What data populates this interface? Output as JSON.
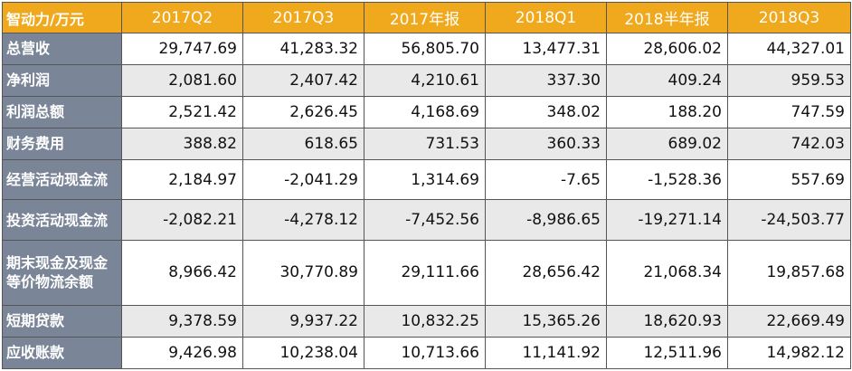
{
  "table": {
    "corner_label": "智动力/万元",
    "columns": [
      "2017Q2",
      "2017Q3",
      "2017年报",
      "2018Q1",
      "2018半年报",
      "2018Q3"
    ],
    "rows": [
      {
        "label": "总营收",
        "values": [
          "29,747.69",
          "41,283.32",
          "56,805.70",
          "13,477.31",
          "28,606.02",
          "44,327.01"
        ]
      },
      {
        "label": "净利润",
        "values": [
          "2,081.60",
          "2,407.42",
          "4,210.61",
          "337.30",
          "409.24",
          "959.53"
        ]
      },
      {
        "label": "利润总额",
        "values": [
          "2,521.42",
          "2,626.45",
          "4,168.69",
          "348.02",
          "188.20",
          "747.59"
        ]
      },
      {
        "label": "财务费用",
        "values": [
          "388.82",
          "618.65",
          "731.53",
          "360.33",
          "689.02",
          "742.03"
        ]
      },
      {
        "label": "经营活动现金流",
        "values": [
          "2,184.97",
          "-2,041.29",
          "1,314.69",
          "-7.65",
          "-1,528.36",
          "557.69"
        ]
      },
      {
        "label": "投资活动现金流",
        "values": [
          "-2,082.21",
          "-4,278.12",
          "-7,452.56",
          "-8,986.65",
          "-19,271.14",
          "-24,503.77"
        ]
      },
      {
        "label": "期末现金及现金等价物流余额",
        "values": [
          "8,966.42",
          "30,770.89",
          "29,111.66",
          "28,656.42",
          "21,068.34",
          "19,857.68"
        ]
      },
      {
        "label": "短期贷款",
        "values": [
          "9,378.59",
          "9,937.22",
          "10,832.25",
          "15,365.26",
          "18,620.93",
          "22,669.49"
        ]
      },
      {
        "label": "应收账款",
        "values": [
          "9,426.98",
          "10,238.04",
          "10,713.66",
          "11,141.92",
          "12,511.96",
          "14,982.12"
        ]
      }
    ]
  }
}
